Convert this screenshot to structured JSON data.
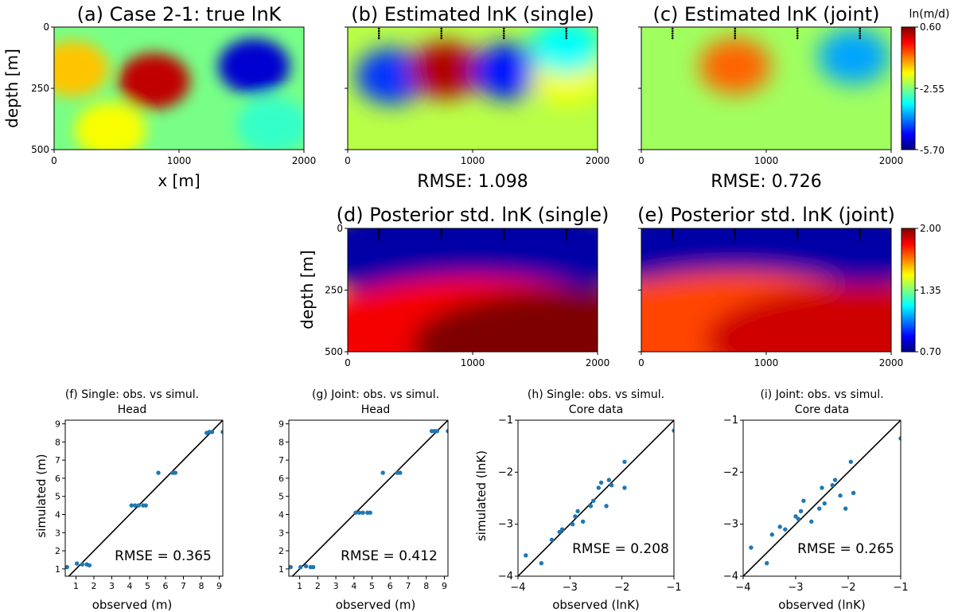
{
  "figure": {
    "field_titles": {
      "a": "(a) Case 2-1: true lnK",
      "b": "(b) Estimated lnK (single)",
      "c": "(c) Estimated lnK (joint)",
      "d": "(d) Posterior std. lnK (single)",
      "e": "(e) Posterior std. lnK (joint)"
    },
    "field_xlabel": "x [m]",
    "field_ylabel": "depth [m]",
    "x_ticks": [
      "0",
      "1000",
      "2000"
    ],
    "depth_ticks": [
      "0",
      "250",
      "500"
    ],
    "rmse_text": {
      "b": "RMSE: 1.098",
      "c": "RMSE: 0.726"
    },
    "colorbar_top": {
      "label": "ln(m/d)",
      "ticks": [
        "0.60",
        "-2.55",
        "-5.70"
      ],
      "range": [
        -5.7,
        0.6
      ]
    },
    "colorbar_bottom": {
      "ticks": [
        "2.00",
        "1.35",
        "0.70"
      ],
      "range": [
        0.7,
        2.0
      ]
    },
    "colormap": [
      "#00007f",
      "#0000ff",
      "#007fff",
      "#00ffff",
      "#7fff7f",
      "#ffff00",
      "#ff7f00",
      "#ff0000",
      "#7f0000"
    ],
    "scatter_color": "#1f77b4"
  },
  "chart_data": [
    {
      "panel": "a",
      "type": "heatmap",
      "title": "(a) Case 2-1: true lnK",
      "xlabel": "x [m]",
      "ylabel": "depth [m]",
      "xlim": [
        0,
        2000
      ],
      "ylim": [
        500,
        0
      ],
      "features": [
        {
          "x": 150,
          "depth": 170,
          "value": -1.4
        },
        {
          "x": 800,
          "depth": 220,
          "value": 0.2
        },
        {
          "x": 1600,
          "depth": 160,
          "value": -5.2
        },
        {
          "x": 1750,
          "depth": 400,
          "value": -3.0
        },
        {
          "x": 450,
          "depth": 420,
          "value": -1.8
        }
      ]
    },
    {
      "panel": "b",
      "type": "heatmap",
      "title": "(b) Estimated lnK (single)",
      "rmse": "RMSE: 1.098",
      "xlim": [
        0,
        2000
      ],
      "ylim": [
        500,
        0
      ],
      "wells_x": [
        250,
        750,
        1250,
        1750
      ],
      "features": [
        {
          "x": 350,
          "depth": 200,
          "value": -4.6
        },
        {
          "x": 780,
          "depth": 175,
          "value": 0.3
        },
        {
          "x": 1280,
          "depth": 180,
          "value": -4.8
        },
        {
          "x": 1750,
          "depth": 200,
          "value": -1.8
        },
        {
          "x": 1750,
          "depth": 80,
          "value": -3.3
        }
      ]
    },
    {
      "panel": "c",
      "type": "heatmap",
      "title": "(c) Estimated lnK (joint)",
      "rmse": "RMSE: 0.726",
      "xlim": [
        0,
        2000
      ],
      "ylim": [
        500,
        0
      ],
      "wells_x": [
        250,
        750,
        1250,
        1750
      ],
      "features": [
        {
          "x": 750,
          "depth": 160,
          "value": -0.8
        },
        {
          "x": 1700,
          "depth": 120,
          "value": -3.9
        }
      ]
    },
    {
      "panel": "d",
      "type": "heatmap",
      "title": "(d) Posterior std. lnK (single)",
      "ylabel": "depth [m]",
      "xlim": [
        0,
        2000
      ],
      "ylim": [
        500,
        0
      ],
      "wells_x": [
        250,
        750,
        1250,
        1750
      ],
      "features": [
        {
          "x": 1000,
          "depth": 90,
          "value": 0.75
        },
        {
          "x": 1000,
          "depth": 420,
          "value": 1.85
        },
        {
          "x": 1850,
          "depth": 470,
          "value": 2.0
        }
      ]
    },
    {
      "panel": "e",
      "type": "heatmap",
      "title": "(e) Posterior std. lnK (joint)",
      "xlim": [
        0,
        2000
      ],
      "ylim": [
        500,
        0
      ],
      "wells_x": [
        250,
        750,
        1250,
        1750
      ],
      "features": [
        {
          "x": 1000,
          "depth": 80,
          "value": 0.75
        },
        {
          "x": 750,
          "depth": 400,
          "value": 1.75
        },
        {
          "x": 1850,
          "depth": 450,
          "value": 1.9
        }
      ]
    },
    {
      "panel": "f",
      "type": "scatter",
      "title": "(f) Single: obs. vs simul.",
      "subtitle": "Head",
      "xlabel": "observed (m)",
      "ylabel": "simulated (m)",
      "xlim": [
        0.4,
        9.2
      ],
      "ylim": [
        0.6,
        9.2
      ],
      "xticks": [
        1,
        2,
        3,
        4,
        5,
        6,
        7,
        8,
        9
      ],
      "yticks": [
        1,
        2,
        3,
        4,
        5,
        6,
        7,
        8,
        9
      ],
      "rmse": "RMSE = 0.365",
      "x": [
        0.5,
        1.05,
        1.35,
        1.6,
        1.75,
        4.1,
        4.3,
        4.5,
        4.75,
        4.9,
        5.6,
        6.4,
        6.55,
        8.3,
        8.45,
        8.6,
        9.2
      ],
      "y": [
        1.1,
        1.3,
        1.25,
        1.25,
        1.2,
        4.5,
        4.5,
        4.5,
        4.5,
        4.5,
        6.3,
        6.3,
        6.3,
        8.5,
        8.55,
        8.55,
        8.55
      ]
    },
    {
      "panel": "g",
      "type": "scatter",
      "title": "(g) Joint: obs. vs simul.",
      "subtitle": "Head",
      "xlabel": "observed (m)",
      "ylabel": "",
      "xlim": [
        0.4,
        9.2
      ],
      "ylim": [
        0.6,
        9.2
      ],
      "xticks": [
        1,
        2,
        3,
        4,
        5,
        6,
        7,
        8,
        9
      ],
      "yticks": [
        1,
        2,
        3,
        4,
        5,
        6,
        7,
        8,
        9
      ],
      "rmse": "RMSE = 0.412",
      "x": [
        0.5,
        1.05,
        1.35,
        1.6,
        1.75,
        4.1,
        4.3,
        4.5,
        4.75,
        4.9,
        5.6,
        6.4,
        6.55,
        8.3,
        8.45,
        8.6,
        9.2
      ],
      "y": [
        1.1,
        1.1,
        1.15,
        1.1,
        1.1,
        4.1,
        4.1,
        4.1,
        4.1,
        4.1,
        6.3,
        6.3,
        6.3,
        8.6,
        8.6,
        8.6,
        8.6
      ]
    },
    {
      "panel": "h",
      "type": "scatter",
      "title": "(h) Single: obs. vs simul.",
      "subtitle": "Core data",
      "xlabel": "observed (lnK)",
      "ylabel": "simulated (lnK)",
      "xlim": [
        -4,
        -1
      ],
      "ylim": [
        -4,
        -1
      ],
      "xticks": [
        -4,
        -3,
        -2,
        -1
      ],
      "yticks": [
        -4,
        -3,
        -2,
        -1
      ],
      "rmse": "RMSE = 0.208",
      "x": [
        -3.85,
        -3.55,
        -3.35,
        -3.2,
        -3.15,
        -2.95,
        -2.9,
        -2.85,
        -2.75,
        -2.6,
        -2.55,
        -2.45,
        -2.4,
        -2.3,
        -2.25,
        -2.2,
        -1.95,
        -1.95,
        -1.0
      ],
      "y": [
        -3.6,
        -3.75,
        -3.3,
        -3.15,
        -3.1,
        -3.0,
        -2.85,
        -2.75,
        -2.95,
        -2.65,
        -2.55,
        -2.3,
        -2.2,
        -2.65,
        -2.15,
        -2.25,
        -1.8,
        -2.3,
        -1.2
      ]
    },
    {
      "panel": "i",
      "type": "scatter",
      "title": "(i) Joint: obs. vs simul.",
      "subtitle": "Core data",
      "xlabel": "observed (lnK)",
      "ylabel": "",
      "xlim": [
        -4,
        -1
      ],
      "ylim": [
        -4,
        -1
      ],
      "xticks": [
        -4,
        -3,
        -2,
        -1
      ],
      "yticks": [
        -4,
        -3,
        -2,
        -1
      ],
      "rmse": "RMSE = 0.265",
      "x": [
        -3.85,
        -3.55,
        -3.45,
        -3.3,
        -3.2,
        -3.0,
        -2.95,
        -2.9,
        -2.85,
        -2.7,
        -2.55,
        -2.5,
        -2.45,
        -2.3,
        -2.25,
        -2.15,
        -2.05,
        -1.95,
        -1.9,
        -1.0
      ],
      "y": [
        -3.45,
        -3.75,
        -3.2,
        -3.05,
        -3.1,
        -2.85,
        -2.9,
        -2.75,
        -2.55,
        -2.95,
        -2.7,
        -2.3,
        -2.6,
        -2.25,
        -2.15,
        -2.45,
        -2.7,
        -1.8,
        -2.4,
        -1.35
      ]
    }
  ]
}
